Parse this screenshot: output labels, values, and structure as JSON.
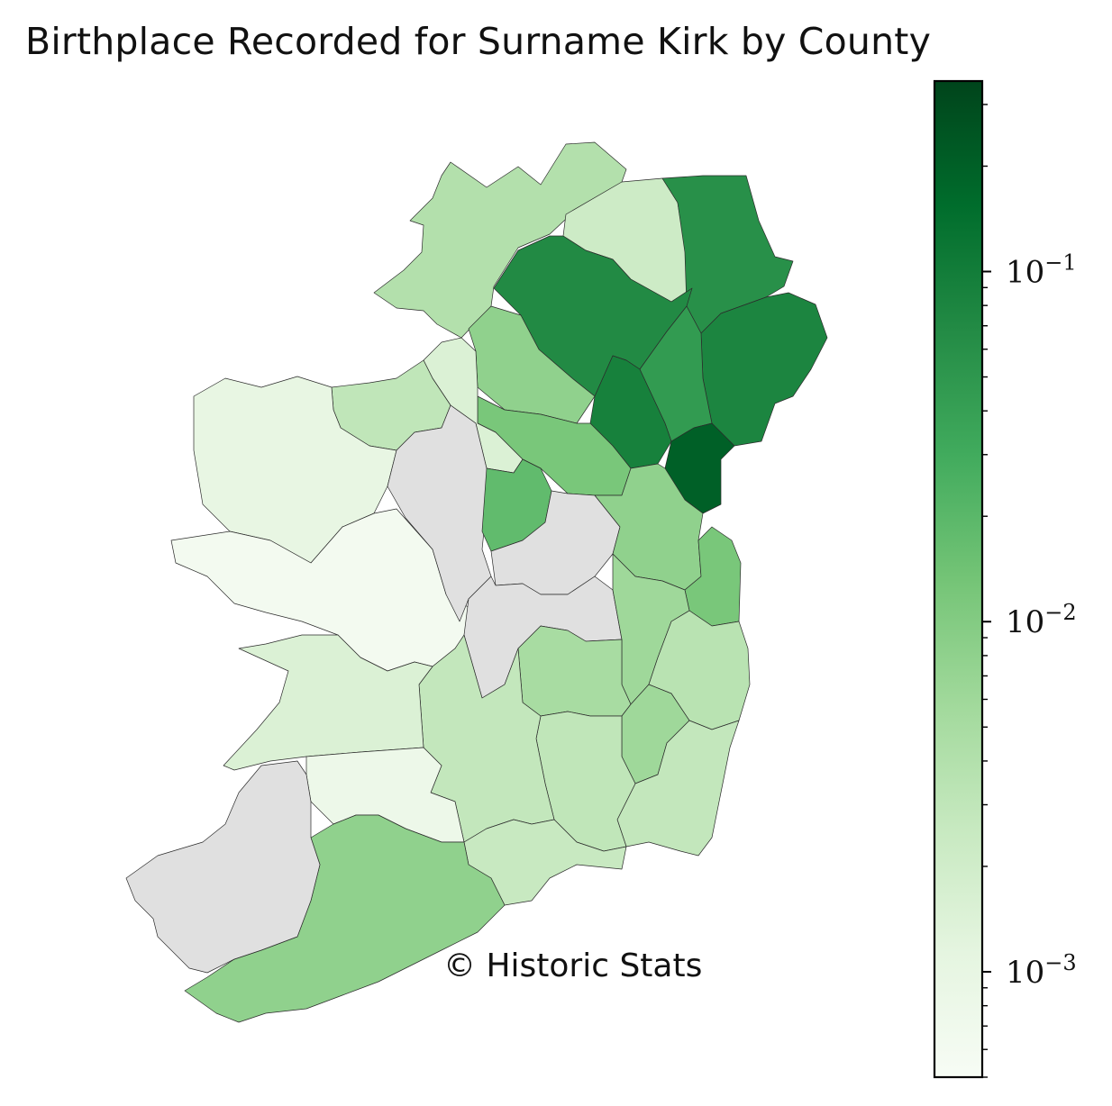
{
  "title": "Birthplace Recorded for Surname Kirk by County",
  "watermark": "© Historic Stats",
  "colors": {
    "no_data": "#e0e0e0",
    "scale_low": "#f7fcf5",
    "scale_mid": "#74c476",
    "scale_high": "#00441b"
  },
  "colorbar": {
    "scale": "log",
    "range": [
      0.0005,
      0.35
    ],
    "major_ticks": [
      {
        "value": 0.1,
        "label_base": "10",
        "label_exp": "−1"
      },
      {
        "value": 0.01,
        "label_base": "10",
        "label_exp": "−2"
      },
      {
        "value": 0.001,
        "label_base": "10",
        "label_exp": "−3"
      }
    ]
  },
  "map_data": {
    "type": "choropleth",
    "region": "Ireland",
    "counties": [
      {
        "name": "Donegal",
        "value": 0.004
      },
      {
        "name": "Derry",
        "value": 0.0022
      },
      {
        "name": "Antrim",
        "value": 0.06
      },
      {
        "name": "Down",
        "value": 0.08
      },
      {
        "name": "Tyrone",
        "value": 0.07
      },
      {
        "name": "Armagh",
        "value": 0.045
      },
      {
        "name": "Fermanagh",
        "value": 0.008
      },
      {
        "name": "Monaghan",
        "value": 0.09
      },
      {
        "name": "Louth",
        "value": 0.2
      },
      {
        "name": "Cavan",
        "value": 0.012
      },
      {
        "name": "Leitrim",
        "value": 0.0015
      },
      {
        "name": "Sligo",
        "value": 0.003
      },
      {
        "name": "Mayo",
        "value": 0.001
      },
      {
        "name": "Galway",
        "value": 0.0006
      },
      {
        "name": "Roscommon",
        "value": null
      },
      {
        "name": "Longford",
        "value": 0.018
      },
      {
        "name": "Westmeath",
        "value": null
      },
      {
        "name": "Meath",
        "value": 0.008
      },
      {
        "name": "Dublin",
        "value": 0.012
      },
      {
        "name": "Offaly",
        "value": null
      },
      {
        "name": "Kildare",
        "value": 0.006
      },
      {
        "name": "Wicklow",
        "value": 0.0035
      },
      {
        "name": "Laois",
        "value": 0.005
      },
      {
        "name": "Carlow",
        "value": 0.006
      },
      {
        "name": "Wexford",
        "value": 0.0028
      },
      {
        "name": "Kilkenny",
        "value": 0.003
      },
      {
        "name": "Tipperary",
        "value": 0.0028
      },
      {
        "name": "Waterford",
        "value": 0.0025
      },
      {
        "name": "Clare",
        "value": 0.0015
      },
      {
        "name": "Limerick",
        "value": 0.0008
      },
      {
        "name": "Cork",
        "value": 0.008
      },
      {
        "name": "Kerry",
        "value": null
      }
    ]
  }
}
